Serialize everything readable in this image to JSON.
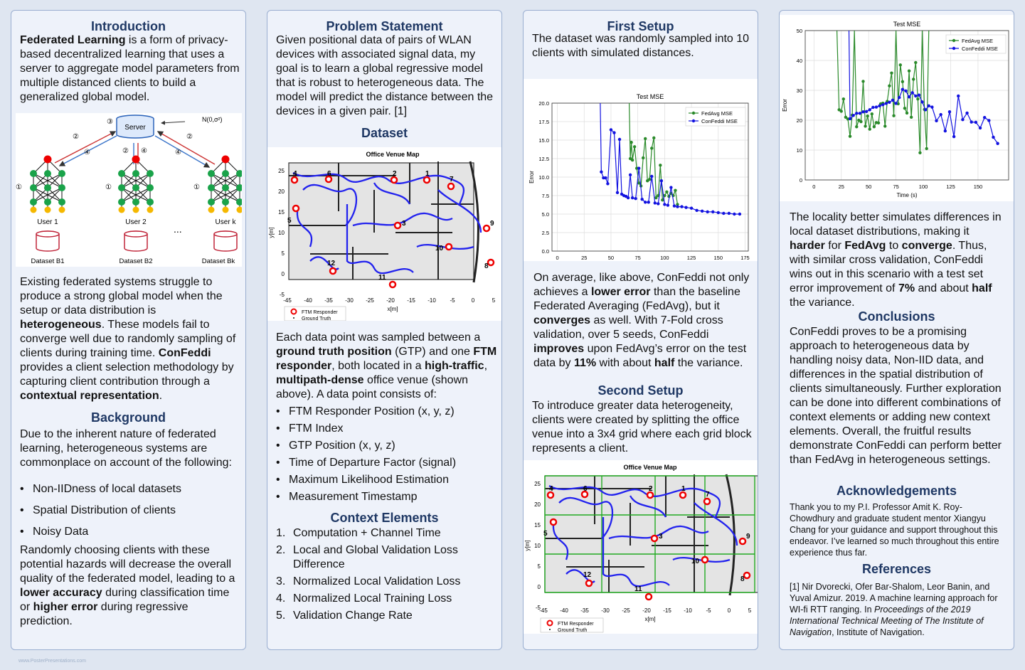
{
  "col1": {
    "intro_title": "Introduction",
    "intro_bold": "Federated Learning",
    "intro_text": " is a form of privacy-based decentralized learning that uses a server to aggregate model parameters from multiple distanced clients to build a generalized global model.",
    "diagram": {
      "server": "Server",
      "noise": "N(0,σ²)",
      "users": [
        "User 1",
        "User 2",
        "User k"
      ],
      "ellipsis": "...",
      "datasets": [
        "Dataset B1",
        "Dataset B2",
        "Dataset Bk"
      ],
      "markers": [
        "①",
        "②",
        "③",
        "④"
      ]
    },
    "para1": [
      " Existing federated systems struggle to produce a strong global model when the setup or data distribution is ",
      "heterogeneous",
      ". These models fail to converge well due to randomly sampling of clients during training time. ",
      "ConFeddi",
      " provides a client selection methodology by capturing client contribution through a ",
      "contextual representation",
      "."
    ],
    "bg_title": "Background",
    "bg_text": "Due to the inherent nature of federated learning, heterogeneous systems are commonplace on account of the following:",
    "bg_items": [
      "Non-IIDness of local datasets",
      "Spatial Distribution of clients",
      "Noisy Data"
    ],
    "para2": [
      "Randomly choosing clients with these potential hazards will decrease the overall quality of the federated model, leading to a ",
      "lower accuracy",
      " during classification time or ",
      "higher error",
      " during regressive prediction."
    ]
  },
  "col2": {
    "ps_title": "Problem Statement",
    "ps_text": "Given positional data of pairs of WLAN devices with associated signal data, my goal is to learn a global regressive model that is robust to heterogeneous data. The model will predict the distance between the devices in a given pair. [1]",
    "ds_title": "Dataset",
    "map_title": "Office Venue Map",
    "map_ylabel": "y[m]",
    "map_xlabel": "x[m]",
    "map_xticks": [
      "-45",
      "-40",
      "-35",
      "-30",
      "-25",
      "-20",
      "-15",
      "-10",
      "-5",
      "0",
      "5"
    ],
    "map_yticks": [
      "25",
      "20",
      "15",
      "10",
      "5",
      "0",
      "-5"
    ],
    "map_nodes": [
      "4",
      "6",
      "2",
      "1",
      "7",
      "5",
      "3",
      "9",
      "10",
      "8",
      "12",
      "11"
    ],
    "legend": [
      "FTM Responder",
      "Ground Truth"
    ],
    "ds_para": [
      "Each data point was sampled between a ",
      "ground truth position",
      " (GTP) and one ",
      "FTM responder",
      ", both located in a ",
      "high-traffic",
      ", ",
      "multipath-dense",
      " office venue (shown above). A data point consists of:"
    ],
    "ds_items": [
      "FTM Responder Position (x, y, z)",
      "FTM Index",
      "GTP Position (x, y, z)",
      "Time of Departure Factor (signal)",
      "Maximum Likelihood Estimation",
      "Measurement Timestamp"
    ],
    "ce_title": "Context Elements",
    "ce_items": [
      "Computation + Channel Time",
      "Local and Global Validation Loss Difference",
      "Normalized Local Validation Loss",
      "Normalized Local Training Loss",
      "Validation Change Rate"
    ],
    "ce_nums": [
      "1.",
      "2.",
      "3.",
      "4.",
      "5."
    ]
  },
  "col3": {
    "fs_title": "First Setup",
    "fs_text": "The dataset was randomly sampled into 10 clients with simulated distances.",
    "fs_para": [
      "On average, like above, ConFeddi not only achieves a ",
      "lower error",
      " than the baseline Federated Averaging (FedAvg), but it ",
      "converges",
      " as well. With 7-Fold cross validation, over 5 seeds, ConFeddi ",
      "improves",
      " upon FedAvg’s error on the test data by ",
      "11%",
      " with about ",
      "half",
      " the variance."
    ],
    "ss_title": "Second Setup",
    "ss_text": "To introduce greater data heterogeneity, clients were created by splitting the office venue into a 3x4 grid where each grid block represents a client.",
    "map_title": "Office Venue Map"
  },
  "col4": {
    "para": [
      "The locality better simulates differences in local dataset distributions, making it ",
      "harder",
      " for ",
      "FedAvg",
      " to ",
      "converge",
      ". Thus, with similar cross validation, ConFeddi wins out in this scenario with a test set error improvement of ",
      "7%",
      " and about ",
      "half",
      " the variance."
    ],
    "conc_title": "Conclusions",
    "conc_text": "ConFeddi proves to be a promising approach to heterogeneous data by handling noisy data, Non-IID data, and differences in the spatial distribution of clients simultaneously. Further exploration can be done into different combinations of context elements or adding new context elements. Overall, the fruitful results demonstrate ConFeddi can perform better than FedAvg in heterogeneous settings.",
    "ack_title": "Acknowledgements",
    "ack_text": "Thank you to my P.I. Professor Amit K. Roy-Chowdhury and graduate student mentor Xiangyu Chang for your guidance and support throughout this endeavor. I’ve learned so much throughout this entire experience thus far.",
    "ref_title": "References",
    "ref_a": "[1] Nir Dvorecki, Ofer Bar-Shalom, Leor Banin, and Yuval Amizur. 2019. A machine learning approach for WI-fi RTT ranging. In ",
    "ref_i": "Proceedings of the 2019 International Technical Meeting of The Institute of Navigation",
    "ref_b": ", Institute of Navigation."
  },
  "footer": "www.PosterPresentations.com",
  "chart_data": [
    {
      "type": "line",
      "title": "Test MSE",
      "xlabel": "Time (s)",
      "ylabel": "Error",
      "xlim": [
        -5,
        178
      ],
      "ylim": [
        0,
        20
      ],
      "xticks": [
        0,
        25,
        50,
        75,
        100,
        125,
        150,
        175
      ],
      "yticks": [
        0.0,
        2.5,
        5.0,
        7.5,
        10.0,
        12.5,
        15.0,
        17.5,
        20.0
      ],
      "grid": true,
      "legend": "top-right",
      "series": [
        {
          "name": "FedAvg MSE",
          "color": "#2a8a2a",
          "x": [
            67,
            68,
            69,
            70,
            72,
            74,
            76,
            78,
            80,
            82,
            84,
            86,
            88,
            90,
            92,
            94,
            96,
            98,
            100,
            102,
            104,
            106,
            108,
            110,
            112
          ],
          "y": [
            20,
            12.5,
            14.7,
            12.3,
            14.1,
            11.2,
            9.2,
            8.8,
            12.6,
            15.2,
            9.5,
            9.7,
            13.9,
            15.3,
            7.2,
            7.5,
            11.6,
            6.9,
            7.5,
            8.0,
            7.4,
            7.8,
            7.5,
            8.2,
            6.3
          ]
        },
        {
          "name": "ConFeddi MSE",
          "color": "#1212e0",
          "x": [
            40,
            41,
            43,
            45,
            47,
            50,
            53,
            56,
            58,
            60,
            62,
            64,
            66,
            68,
            70,
            73,
            76,
            79,
            82,
            85,
            88,
            91,
            94,
            97,
            100,
            103,
            106,
            109,
            112,
            116,
            120,
            125,
            130,
            135,
            140,
            145,
            150,
            155,
            160,
            165,
            170
          ],
          "y": [
            20,
            10.7,
            9.9,
            9.9,
            9.1,
            16.4,
            16.0,
            7.9,
            15.1,
            7.7,
            7.5,
            7.4,
            7.2,
            10.3,
            7.2,
            7.1,
            11.2,
            7.0,
            6.6,
            6.6,
            10.1,
            6.5,
            6.4,
            9.5,
            6.3,
            6.2,
            8.6,
            6.1,
            6.0,
            6.0,
            5.9,
            5.8,
            5.5,
            5.4,
            5.3,
            5.3,
            5.2,
            5.1,
            5.1,
            5.0,
            5.0
          ]
        }
      ]
    },
    {
      "type": "line",
      "title": "Test MSE",
      "xlabel": "Time (s)",
      "ylabel": "Error",
      "xlim": [
        -8,
        178
      ],
      "ylim": [
        0,
        50
      ],
      "xticks": [
        0,
        25,
        50,
        75,
        100,
        125,
        150
      ],
      "yticks": [
        0,
        10,
        20,
        30,
        40,
        50
      ],
      "grid": true,
      "legend": "top-right",
      "series": [
        {
          "name": "FedAvg MSE",
          "color": "#2a8a2a",
          "x": [
            21,
            23,
            25,
            27,
            29,
            31,
            33,
            35,
            37,
            39,
            41,
            43,
            45,
            47,
            49,
            51,
            53,
            55,
            57,
            59,
            61,
            63,
            65,
            67,
            69,
            71,
            73,
            75,
            77,
            79,
            81,
            83,
            85,
            87,
            89,
            91,
            93,
            95,
            97,
            99,
            101,
            103,
            105
          ],
          "y": [
            50,
            23.5,
            23,
            27.1,
            21,
            20.4,
            14.6,
            21.7,
            50,
            17.8,
            20,
            19.5,
            33,
            18,
            21.4,
            17,
            22.1,
            17.8,
            19.2,
            19.1,
            25.5,
            25.7,
            18,
            26.3,
            31.5,
            35.8,
            21.5,
            50,
            25.5,
            38.5,
            32.9,
            24,
            22.4,
            36.5,
            21,
            33.7,
            39.3,
            27.1,
            9.1,
            50,
            23.6,
            10.5,
            50
          ]
        },
        {
          "name": "ConFeddi MSE",
          "color": "#1212e0",
          "x": [
            32,
            33,
            36,
            39,
            42,
            45,
            48,
            51,
            54,
            57,
            60,
            63,
            66,
            69,
            72,
            75,
            78,
            81,
            84,
            87,
            90,
            93,
            96,
            99,
            102,
            105,
            108,
            112,
            116,
            120,
            124,
            128,
            132,
            136,
            140,
            144,
            148,
            152,
            156,
            160,
            164,
            168
          ],
          "y": [
            50,
            20.5,
            21.6,
            22.3,
            22.3,
            22.8,
            22.9,
            23.5,
            24.3,
            24.4,
            24.8,
            25.2,
            25.6,
            26.0,
            26.7,
            25.6,
            27.6,
            30.3,
            29.8,
            27.8,
            29.2,
            28.1,
            28.4,
            26.1,
            23.5,
            24.8,
            24.4,
            19.8,
            21.9,
            16.4,
            22.8,
            14.5,
            28.1,
            20.2,
            22.4,
            19.4,
            19.3,
            17.4,
            20.9,
            19.9,
            14.3,
            12.2
          ]
        }
      ]
    }
  ]
}
